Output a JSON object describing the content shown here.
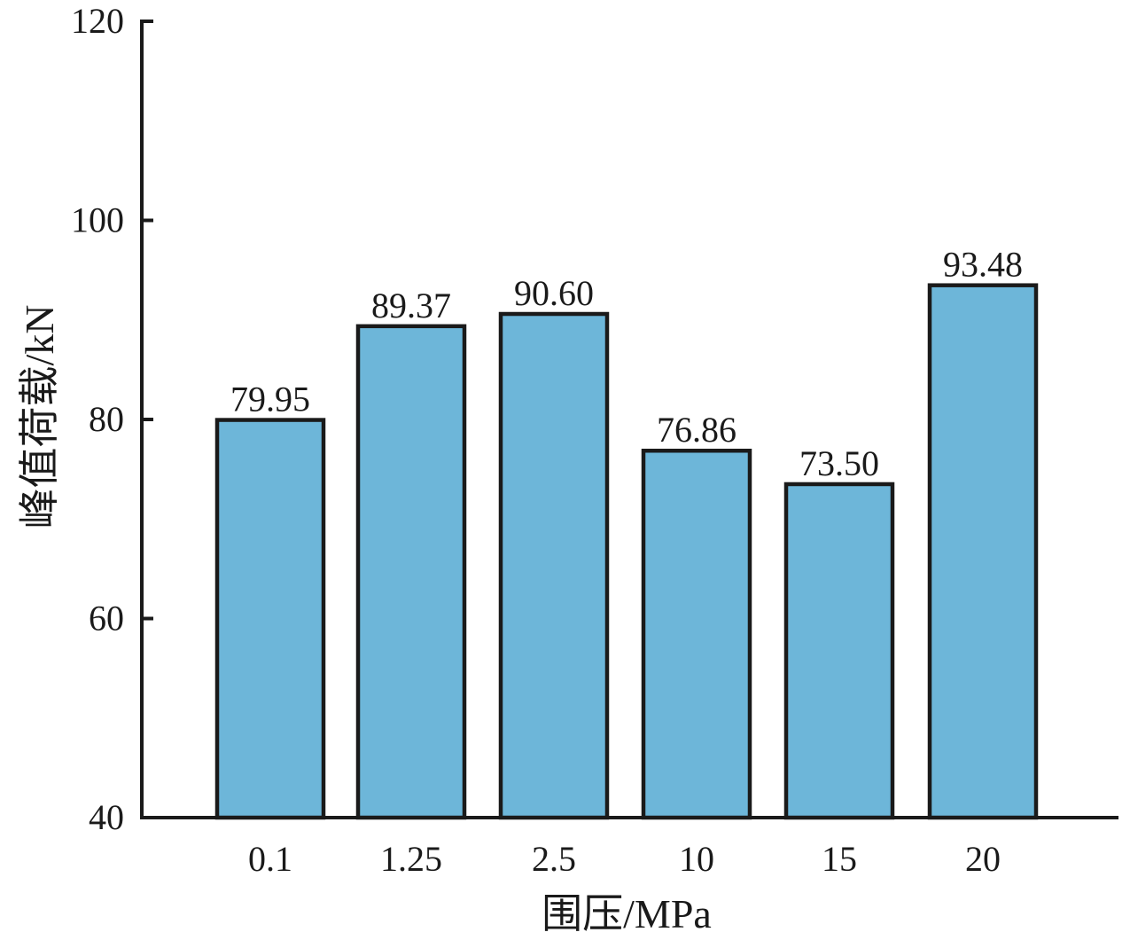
{
  "chart_data": {
    "type": "bar",
    "categories": [
      "0.1",
      "1.25",
      "2.5",
      "10",
      "15",
      "20"
    ],
    "values": [
      79.95,
      89.37,
      90.6,
      76.86,
      73.5,
      93.48
    ],
    "data_labels": [
      "79.95",
      "89.37",
      "90.60",
      "76.86",
      "73.50",
      "93.48"
    ],
    "xlabel": "围压/MPa",
    "ylabel": "峰值荷载/kN",
    "ylim": [
      40,
      120
    ],
    "yticks": [
      40,
      60,
      80,
      100,
      120
    ],
    "ytick_labels": [
      "40",
      "60",
      "80",
      "100",
      "120"
    ],
    "grid": false,
    "bar_color": "#6db6d9",
    "edge_color": "#1a1a1a"
  }
}
